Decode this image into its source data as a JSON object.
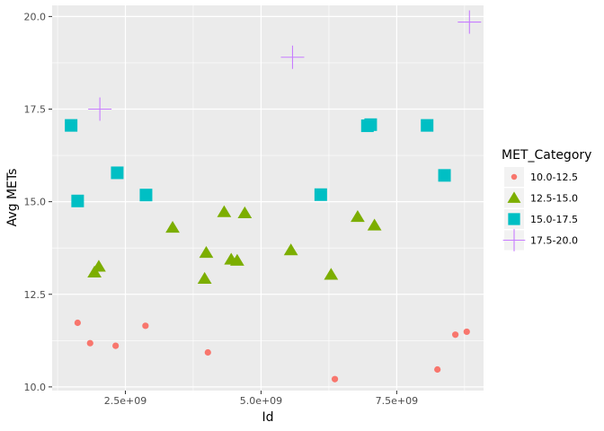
{
  "chart_data": {
    "type": "scatter",
    "title": "",
    "xlabel": "Id",
    "ylabel": "Avg METs",
    "xlim": [
      1150000000,
      9100000000
    ],
    "ylim": [
      9.9,
      20.3
    ],
    "x_ticks": [
      2500000000,
      5000000000,
      7500000000
    ],
    "x_tick_labels": [
      "2.5e+09",
      "5.0e+09",
      "7.5e+09"
    ],
    "y_ticks": [
      10.0,
      12.5,
      15.0,
      17.5,
      20.0
    ],
    "y_tick_labels": [
      "10.0",
      "12.5",
      "15.0",
      "17.5",
      "20.0"
    ],
    "grid": true,
    "legend": {
      "title": "MET_Category",
      "position": "right",
      "entries": [
        {
          "label": "10.0-12.5",
          "shape": "circle",
          "color": "#F8766D"
        },
        {
          "label": "12.5-15.0",
          "shape": "triangle",
          "color": "#7CAE00"
        },
        {
          "label": "15.0-17.5",
          "shape": "square",
          "color": "#00BFC4"
        },
        {
          "label": "17.5-20.0",
          "shape": "cross",
          "color": "#C77CFF"
        }
      ]
    },
    "series": [
      {
        "name": "10.0-12.5",
        "points": [
          {
            "x": 1620000000,
            "y": 11.73
          },
          {
            "x": 1850000000,
            "y": 11.18
          },
          {
            "x": 2320000000,
            "y": 11.11
          },
          {
            "x": 2870000000,
            "y": 11.65
          },
          {
            "x": 4020000000,
            "y": 10.93
          },
          {
            "x": 6360000000,
            "y": 10.21
          },
          {
            "x": 8250000000,
            "y": 10.47
          },
          {
            "x": 8580000000,
            "y": 11.41
          },
          {
            "x": 8790000000,
            "y": 11.49
          }
        ]
      },
      {
        "name": "12.5-15.0",
        "points": [
          {
            "x": 1930000000,
            "y": 13.09
          },
          {
            "x": 2010000000,
            "y": 13.25
          },
          {
            "x": 3370000000,
            "y": 14.3
          },
          {
            "x": 3960000000,
            "y": 12.92
          },
          {
            "x": 3990000000,
            "y": 13.62
          },
          {
            "x": 4320000000,
            "y": 14.72
          },
          {
            "x": 4450000000,
            "y": 13.44
          },
          {
            "x": 4560000000,
            "y": 13.41
          },
          {
            "x": 4700000000,
            "y": 14.69
          },
          {
            "x": 5550000000,
            "y": 13.69
          },
          {
            "x": 6290000000,
            "y": 13.03
          },
          {
            "x": 6780000000,
            "y": 14.59
          },
          {
            "x": 7090000000,
            "y": 14.36
          }
        ]
      },
      {
        "name": "15.0-17.5",
        "points": [
          {
            "x": 1500000000,
            "y": 17.06
          },
          {
            "x": 1620000000,
            "y": 15.02
          },
          {
            "x": 2350000000,
            "y": 15.78
          },
          {
            "x": 2880000000,
            "y": 15.18
          },
          {
            "x": 6100000000,
            "y": 15.19
          },
          {
            "x": 6960000000,
            "y": 17.05
          },
          {
            "x": 7020000000,
            "y": 17.08
          },
          {
            "x": 8060000000,
            "y": 17.06
          },
          {
            "x": 8380000000,
            "y": 15.71
          }
        ]
      },
      {
        "name": "17.5-20.0",
        "points": [
          {
            "x": 2030000000,
            "y": 17.5
          },
          {
            "x": 5580000000,
            "y": 18.9
          },
          {
            "x": 8840000000,
            "y": 19.85
          }
        ]
      }
    ]
  }
}
